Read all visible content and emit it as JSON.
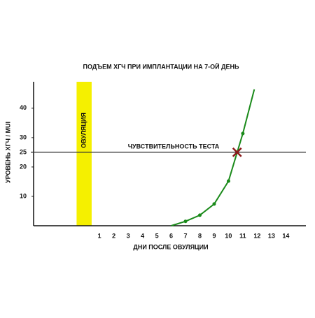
{
  "chart_data": {
    "type": "line",
    "title": "ПОДЪЕМ ХГЧ ПРИ ИМПЛАНТАЦИИ НА 7-ОЙ ДЕНЬ",
    "x_label": "ДНИ ПОСЛЕ ОВУЛЯЦИИ",
    "y_label": "УРОВЕНЬ ХГЧ / MUI",
    "x": [
      6,
      7,
      8,
      9,
      10,
      11,
      11.8
    ],
    "series": [
      {
        "color": "#1a8a1a",
        "values": [
          0,
          1.5,
          3.6,
          7.4,
          15.2,
          31.4,
          46.4
        ]
      }
    ],
    "xlim": [
      -3.6,
      15.4
    ],
    "xticks": [
      1,
      2,
      3,
      4,
      5,
      6,
      7,
      8,
      9,
      10,
      11,
      12,
      13,
      14
    ],
    "ylim": [
      0,
      49
    ],
    "yticks": [
      10,
      20,
      25,
      30,
      40
    ],
    "band": {
      "x": [
        -0.6,
        0.45
      ],
      "label": "ОВУЛЯЦИЯ",
      "color": "#f5f000"
    },
    "reference_line": {
      "value": 25,
      "label": "ЧУВСТВИТЕЛЬНОСТЬ ТЕСТА",
      "color": "#b03030"
    },
    "marker": {
      "x": 10.6,
      "y": 25,
      "color": "#8b1a1a"
    }
  }
}
